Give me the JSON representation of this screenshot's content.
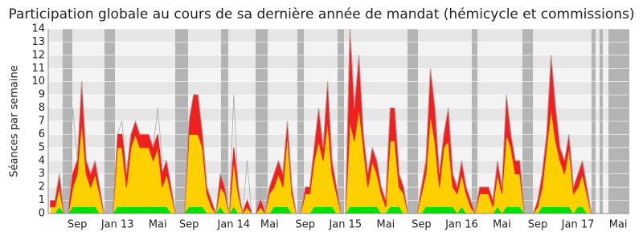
{
  "chart_data": {
    "type": "stacked_area",
    "title": "Participation globale au cours de sa dernière année de mandat (hémicycle et commissions)",
    "y_label": "Séances par semaine",
    "categories": [
      null,
      null,
      null,
      null,
      null,
      null,
      "Sep",
      null,
      null,
      null,
      null,
      null,
      null,
      null,
      null,
      "Jan 13",
      null,
      null,
      null,
      null,
      null,
      null,
      null,
      null,
      "Mai",
      null,
      null,
      null,
      null,
      null,
      null,
      "Sep",
      null,
      null,
      null,
      null,
      null,
      null,
      null,
      null,
      null,
      "Jan 14",
      null,
      null,
      null,
      null,
      null,
      null,
      null,
      "Mai",
      null,
      null,
      null,
      null,
      null,
      null,
      null,
      "Sep",
      null,
      null,
      null,
      null,
      null,
      null,
      null,
      null,
      "Jan 15",
      null,
      null,
      null,
      null,
      null,
      null,
      null,
      null,
      "Mai",
      null,
      null,
      null,
      null,
      null,
      null,
      null,
      "Sep",
      null,
      null,
      null,
      null,
      null,
      null,
      null,
      null,
      "Jan 16",
      null,
      null,
      null,
      null,
      null,
      null,
      null,
      null,
      "Mai",
      null,
      null,
      null,
      null,
      null,
      null,
      null,
      "Sep",
      null,
      null,
      null,
      null,
      null,
      null,
      null,
      null,
      "Jan 17",
      null,
      null,
      null,
      null,
      null,
      null,
      null,
      null,
      "Mai",
      null,
      null
    ],
    "series": [
      {
        "color": "#00e000",
        "values": [
          0,
          0,
          0.5,
          0,
          0,
          0.5,
          0.5,
          0.5,
          0.5,
          0.5,
          0.5,
          0,
          0,
          0,
          0,
          0.5,
          0.5,
          0.5,
          0.5,
          0.5,
          0.5,
          0.5,
          0.5,
          0.5,
          0.5,
          0.5,
          0.5,
          0,
          0,
          0,
          0,
          0.5,
          0.5,
          0.5,
          0.5,
          0,
          0,
          0,
          0.5,
          0,
          0,
          0.5,
          0,
          0,
          0,
          0,
          0,
          0,
          0,
          0,
          0.5,
          0.5,
          0.5,
          0.5,
          0,
          0,
          0,
          0,
          0,
          0.5,
          0.5,
          0.5,
          0.5,
          0.5,
          0,
          0,
          0,
          0.5,
          0.5,
          0.5,
          0.5,
          0.5,
          0.5,
          0.5,
          0,
          0,
          0.5,
          0.5,
          0.5,
          0,
          0,
          0,
          0,
          0,
          0.5,
          0.5,
          0.5,
          0.5,
          0.5,
          0.5,
          0.5,
          0,
          0.5,
          0,
          0,
          0,
          0,
          0,
          0,
          0,
          0.5,
          0,
          0.5,
          0.5,
          0.5,
          0.5,
          0,
          0,
          0,
          0,
          0.5,
          0.5,
          0.5,
          0.5,
          0.5,
          0.5,
          0.5,
          0,
          0.5,
          0.5,
          0,
          0,
          0,
          0,
          0,
          0,
          0,
          0,
          0,
          0
        ]
      },
      {
        "color": "#ffd000",
        "values": [
          0.5,
          0.5,
          1.5,
          0,
          0,
          1.5,
          2.5,
          6.5,
          2.5,
          1.5,
          2.5,
          1.5,
          0,
          0,
          0,
          4.5,
          4.5,
          1.5,
          4.5,
          5.5,
          4.5,
          4.5,
          4.5,
          3.5,
          4.5,
          1.5,
          2.5,
          1.5,
          0,
          0,
          0,
          5.5,
          5.5,
          5.5,
          4.5,
          1.5,
          0.5,
          0,
          1.5,
          1.5,
          0,
          3.5,
          1.5,
          0,
          0.5,
          0,
          0,
          0.5,
          0,
          1.5,
          1.5,
          2.5,
          1.5,
          5.5,
          1.5,
          0,
          0,
          1.5,
          1.5,
          3.5,
          5,
          3.5,
          6.5,
          2.5,
          1.5,
          0,
          0,
          6.5,
          5,
          7.5,
          4.5,
          1.5,
          3.5,
          2.5,
          1.5,
          0.5,
          5,
          5,
          1.5,
          1.5,
          0,
          0,
          0,
          1.5,
          2.5,
          7,
          5,
          1.5,
          4.5,
          5,
          1.5,
          1.5,
          2.5,
          1.5,
          0.5,
          0,
          1.5,
          1.5,
          1.5,
          0.5,
          2.5,
          1.5,
          5.5,
          4.5,
          2.5,
          2.5,
          0,
          0,
          0,
          0.5,
          1.5,
          4.5,
          7.5,
          5,
          3.5,
          2.5,
          4.5,
          1.5,
          1.5,
          2.5,
          1.5,
          0,
          0,
          0,
          0,
          0,
          0,
          0,
          0,
          0
        ]
      },
      {
        "color": "#f02020",
        "values": [
          0.5,
          0.5,
          1,
          0,
          0,
          1,
          1,
          3,
          1,
          1,
          1,
          0.5,
          0,
          0,
          0,
          1,
          1,
          1,
          1,
          1,
          1,
          1,
          1,
          1,
          1,
          1,
          1,
          0.5,
          0,
          0,
          0,
          1,
          3,
          3,
          1,
          0.5,
          0.5,
          0,
          1,
          0.5,
          0,
          1,
          0.5,
          0,
          0.5,
          0,
          0,
          0.5,
          0,
          0.5,
          1,
          1,
          1,
          1,
          0.5,
          0,
          0,
          0.5,
          0.5,
          1,
          2.5,
          1,
          3,
          1,
          0.5,
          0,
          0,
          7,
          2.5,
          4,
          1,
          1,
          1,
          1,
          0.5,
          0.5,
          2.5,
          2.5,
          1,
          0.5,
          0,
          0,
          0,
          0.5,
          1,
          3.5,
          2.5,
          1,
          1,
          2.5,
          1,
          0.5,
          1,
          0.5,
          0.5,
          0,
          0.5,
          0.5,
          0.5,
          0.5,
          1,
          0.5,
          3,
          1,
          1,
          1,
          0,
          0,
          0,
          0.5,
          1,
          1,
          4,
          2.5,
          1,
          1,
          1,
          0.5,
          1,
          1,
          0.5,
          0,
          0,
          0,
          0,
          0,
          0,
          0,
          0,
          0
        ]
      }
    ],
    "line": {
      "color": "#a8a8a8",
      "values": [
        1,
        1,
        3,
        0,
        0,
        8,
        4,
        10,
        4,
        3,
        4,
        2,
        0,
        0,
        0,
        6,
        7,
        3,
        6,
        7,
        6,
        6,
        6,
        5,
        8,
        4,
        4,
        2,
        0,
        0,
        0,
        7,
        9,
        9,
        6,
        2,
        1,
        0,
        3,
        2,
        0,
        9,
        2,
        0,
        4,
        0,
        0,
        2,
        0,
        2,
        3,
        4,
        3,
        7,
        2,
        0,
        0,
        2,
        2,
        5,
        8,
        5,
        10,
        4,
        2,
        0,
        0,
        14,
        8,
        12,
        6,
        3,
        5,
        4,
        2,
        1,
        8,
        8,
        3,
        2,
        0,
        0,
        0,
        2,
        4,
        11,
        8,
        3,
        6,
        8,
        3,
        2,
        4,
        2,
        1,
        0,
        2,
        2,
        2,
        1,
        4,
        2,
        9,
        6,
        4,
        4,
        0,
        0,
        0,
        1,
        3,
        6,
        12,
        8,
        5,
        4,
        6,
        2,
        3,
        4,
        2,
        0,
        0,
        0,
        0,
        0,
        0,
        0,
        0,
        0
      ]
    },
    "ylim": [
      0,
      14
    ],
    "yticks": [
      0,
      1,
      2,
      3,
      4,
      5,
      6,
      7,
      8,
      9,
      10,
      11,
      12,
      13,
      14
    ],
    "grid": true
  }
}
